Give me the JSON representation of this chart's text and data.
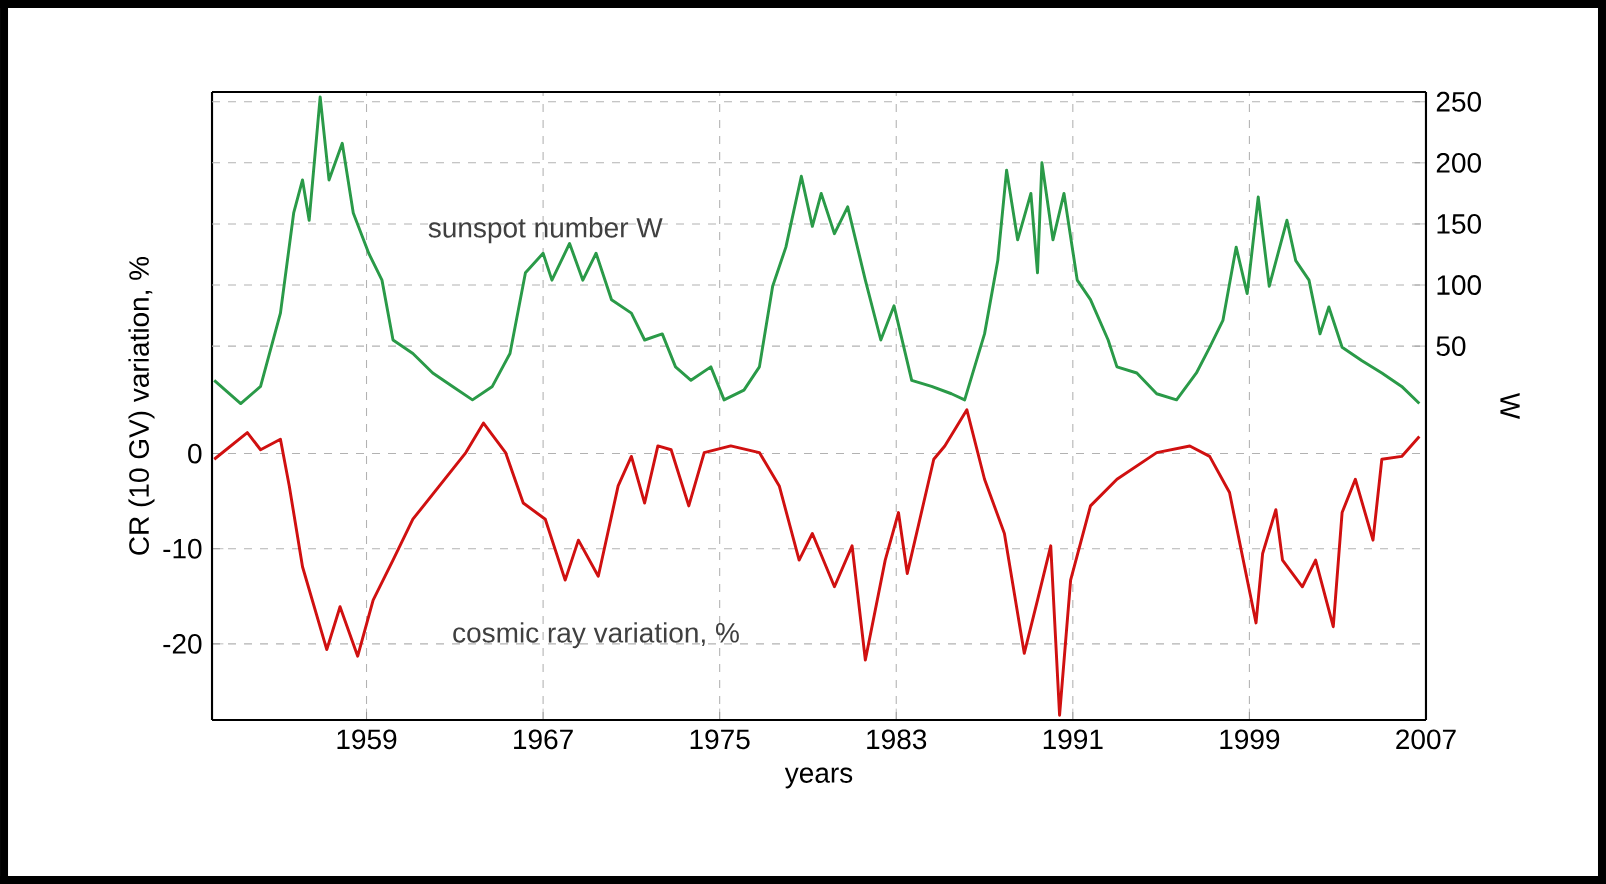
{
  "chart_data": {
    "type": "line",
    "xlabel": "years",
    "ylabel": "CR (10 GV) variation, %",
    "y2label": "W",
    "xlim": [
      1952,
      2007
    ],
    "xticks": [
      1959,
      1967,
      1975,
      1983,
      1991,
      1999,
      2007
    ],
    "ylim": [
      -28,
      38
    ],
    "yticks": [
      -20,
      -10,
      0
    ],
    "y2lim": [
      -256,
      258
    ],
    "y2ticks": [
      50,
      100,
      150,
      200,
      250
    ],
    "grid": true,
    "series": [
      {
        "name": "sunspot number W",
        "color": "#2a9a48",
        "axis": "y2",
        "x": [
          1952.1,
          1953.3,
          1954.2,
          1955.1,
          1955.7,
          1956.1,
          1956.4,
          1956.9,
          1957.3,
          1957.9,
          1958.4,
          1959.1,
          1959.7,
          1960.2,
          1961.1,
          1962.0,
          1962.9,
          1963.8,
          1964.7,
          1965.5,
          1966.2,
          1967.0,
          1967.4,
          1968.2,
          1968.8,
          1969.4,
          1970.1,
          1971.0,
          1971.6,
          1972.4,
          1973.0,
          1973.7,
          1974.6,
          1975.2,
          1976.1,
          1976.8,
          1977.4,
          1978.0,
          1978.7,
          1979.2,
          1979.6,
          1980.2,
          1980.8,
          1981.6,
          1982.3,
          1982.9,
          1983.7,
          1984.6,
          1985.5,
          1986.1,
          1987.0,
          1987.6,
          1988.0,
          1988.5,
          1989.1,
          1989.4,
          1989.6,
          1990.1,
          1990.6,
          1991.2,
          1991.8,
          1992.6,
          1993.0,
          1993.9,
          1994.8,
          1995.7,
          1996.6,
          1997.2,
          1997.8,
          1998.4,
          1998.9,
          1999.4,
          1999.9,
          2000.7,
          2001.1,
          2001.7,
          2002.2,
          2002.6,
          2003.2,
          2004.1,
          2005.0,
          2005.9,
          2006.7
        ],
        "values": [
          22,
          3,
          17,
          77,
          159,
          186,
          153,
          254,
          186,
          216,
          159,
          126,
          104,
          55,
          44,
          28,
          17,
          6,
          17,
          44,
          110,
          126,
          104,
          134,
          104,
          126,
          88,
          77,
          55,
          60,
          33,
          22,
          33,
          6,
          14,
          33,
          99,
          131,
          189,
          148,
          175,
          142,
          164,
          104,
          55,
          83,
          22,
          17,
          11,
          6,
          60,
          120,
          194,
          137,
          175,
          110,
          200,
          137,
          175,
          104,
          88,
          55,
          33,
          28,
          11,
          6,
          28,
          49,
          71,
          131,
          93,
          172,
          99,
          153,
          120,
          104,
          60,
          82,
          49,
          38,
          28,
          17,
          3
        ]
      },
      {
        "name": "cosmic ray variation, %",
        "color": "#d01010",
        "x": [
          1952.1,
          1953.6,
          1954.2,
          1955.1,
          1955.5,
          1956.1,
          1957.2,
          1957.8,
          1958.6,
          1959.3,
          1960.2,
          1961.1,
          1962.3,
          1963.5,
          1964.3,
          1965.3,
          1966.1,
          1967.1,
          1968.0,
          1968.6,
          1969.5,
          1970.4,
          1971.0,
          1971.6,
          1972.2,
          1972.8,
          1973.6,
          1974.3,
          1975.5,
          1976.8,
          1977.7,
          1978.6,
          1979.2,
          1980.2,
          1981.0,
          1981.6,
          1982.5,
          1983.1,
          1983.5,
          1984.7,
          1985.2,
          1986.2,
          1987.0,
          1987.9,
          1988.8,
          1989.4,
          1990.0,
          1990.4,
          1990.9,
          1991.8,
          1993.0,
          1994.8,
          1996.3,
          1997.2,
          1998.1,
          1999.3,
          1999.6,
          2000.2,
          2000.5,
          2001.4,
          2002.0,
          2002.8,
          2003.2,
          2003.8,
          2004.6,
          2005.0,
          2005.9,
          2006.7
        ],
        "values": [
          -0.6,
          2.2,
          0.4,
          1.5,
          -3.4,
          -11.9,
          -20.6,
          -16.1,
          -21.3,
          -15.4,
          -11.2,
          -6.9,
          -3.4,
          0.1,
          3.2,
          0.1,
          -5.2,
          -6.9,
          -13.3,
          -9.1,
          -12.9,
          -3.4,
          -0.3,
          -5.2,
          0.8,
          0.4,
          -5.5,
          0.1,
          0.8,
          0.1,
          -3.4,
          -11.2,
          -8.4,
          -14.0,
          -9.7,
          -21.7,
          -11.2,
          -6.2,
          -12.6,
          -0.6,
          0.8,
          4.6,
          -2.7,
          -8.4,
          -21.0,
          -15.4,
          -9.7,
          -27.5,
          -13.3,
          -5.5,
          -2.7,
          0.1,
          0.8,
          -0.3,
          -4.1,
          -17.8,
          -10.5,
          -5.9,
          -11.2,
          -14.0,
          -11.2,
          -18.2,
          -6.2,
          -2.7,
          -9.1,
          -0.6,
          -0.3,
          1.8
        ]
      }
    ]
  }
}
